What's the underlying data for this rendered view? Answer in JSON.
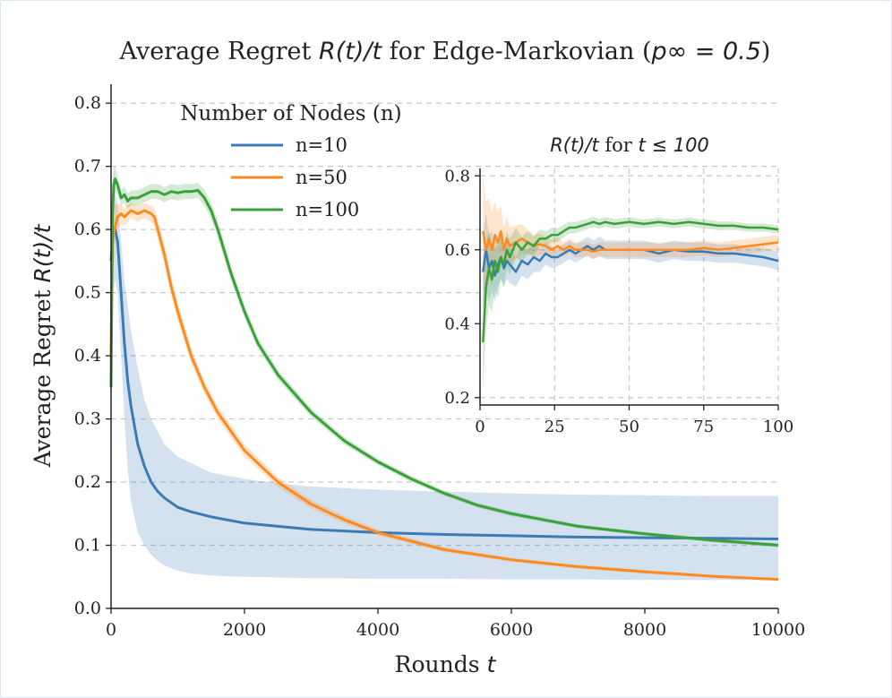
{
  "chart_data": {
    "type": "line",
    "title": {
      "prefix": "Average Regret ",
      "math": "R(t)/t",
      "mid": " for Edge-Markovian (",
      "math2": "p∞ = 0.5",
      "suffix": ")"
    },
    "xlabel": {
      "text": "Rounds ",
      "math": "t"
    },
    "ylabel": {
      "text": "Average Regret ",
      "math": "R(t)/t"
    },
    "xlim": [
      0,
      10000
    ],
    "ylim": [
      0,
      0.83
    ],
    "xticks": [
      "0",
      "2000",
      "4000",
      "6000",
      "8000",
      "10000"
    ],
    "yticks": [
      "0.0",
      "0.1",
      "0.2",
      "0.3",
      "0.4",
      "0.5",
      "0.6",
      "0.7",
      "0.8"
    ],
    "legend": {
      "title": "Number of Nodes (n)",
      "position": "top-left"
    },
    "series": [
      {
        "name": "n=10",
        "color": "#3a7bb5",
        "x": [
          0,
          30,
          60,
          100,
          150,
          200,
          250,
          300,
          400,
          500,
          600,
          700,
          800,
          1000,
          1200,
          1500,
          2000,
          2500,
          3000,
          4000,
          5000,
          6000,
          7000,
          8000,
          9000,
          10000
        ],
        "y": [
          0.55,
          0.59,
          0.6,
          0.58,
          0.5,
          0.42,
          0.36,
          0.32,
          0.26,
          0.225,
          0.2,
          0.185,
          0.175,
          0.16,
          0.153,
          0.145,
          0.135,
          0.13,
          0.125,
          0.12,
          0.117,
          0.115,
          0.113,
          0.112,
          0.111,
          0.11
        ],
        "lower": [
          0.45,
          0.5,
          0.52,
          0.5,
          0.4,
          0.3,
          0.22,
          0.17,
          0.12,
          0.1,
          0.085,
          0.075,
          0.068,
          0.06,
          0.055,
          0.052,
          0.05,
          0.049,
          0.048,
          0.047,
          0.047,
          0.046,
          0.046,
          0.045,
          0.045,
          0.045
        ],
        "upper": [
          0.65,
          0.66,
          0.66,
          0.64,
          0.58,
          0.52,
          0.48,
          0.44,
          0.38,
          0.33,
          0.3,
          0.28,
          0.26,
          0.24,
          0.23,
          0.215,
          0.205,
          0.198,
          0.193,
          0.188,
          0.185,
          0.182,
          0.18,
          0.179,
          0.178,
          0.178
        ]
      },
      {
        "name": "n=50",
        "color": "#ff8a1f",
        "x": [
          0,
          20,
          50,
          100,
          150,
          200,
          300,
          400,
          500,
          600,
          650,
          700,
          800,
          900,
          1000,
          1200,
          1400,
          1600,
          1800,
          2000,
          2500,
          3000,
          3500,
          4000,
          5000,
          6000,
          7000,
          8000,
          9000,
          10000
        ],
        "y": [
          0.4,
          0.58,
          0.6,
          0.62,
          0.625,
          0.62,
          0.63,
          0.625,
          0.63,
          0.625,
          0.62,
          0.6,
          0.56,
          0.51,
          0.47,
          0.4,
          0.35,
          0.31,
          0.28,
          0.25,
          0.2,
          0.165,
          0.14,
          0.12,
          0.093,
          0.077,
          0.066,
          0.058,
          0.051,
          0.046
        ],
        "lower": [
          0.3,
          0.52,
          0.56,
          0.6,
          0.61,
          0.605,
          0.618,
          0.612,
          0.618,
          0.612,
          0.605,
          0.585,
          0.545,
          0.495,
          0.455,
          0.388,
          0.34,
          0.3,
          0.27,
          0.24,
          0.192,
          0.158,
          0.134,
          0.115,
          0.089,
          0.074,
          0.063,
          0.055,
          0.049,
          0.044
        ],
        "upper": [
          0.5,
          0.64,
          0.64,
          0.64,
          0.64,
          0.635,
          0.642,
          0.638,
          0.642,
          0.638,
          0.635,
          0.615,
          0.575,
          0.525,
          0.485,
          0.412,
          0.36,
          0.32,
          0.29,
          0.26,
          0.208,
          0.172,
          0.146,
          0.125,
          0.097,
          0.08,
          0.069,
          0.061,
          0.053,
          0.048
        ]
      },
      {
        "name": "n=100",
        "color": "#3aa13a",
        "x": [
          0,
          20,
          40,
          60,
          100,
          150,
          200,
          250,
          300,
          400,
          500,
          600,
          700,
          800,
          900,
          1000,
          1100,
          1200,
          1300,
          1400,
          1500,
          1600,
          1800,
          2000,
          2200,
          2500,
          3000,
          3500,
          4000,
          4500,
          5000,
          5500,
          6000,
          7000,
          8000,
          9000,
          10000
        ],
        "y": [
          0.35,
          0.62,
          0.67,
          0.68,
          0.67,
          0.65,
          0.655,
          0.645,
          0.65,
          0.65,
          0.655,
          0.66,
          0.66,
          0.655,
          0.66,
          0.658,
          0.66,
          0.66,
          0.662,
          0.65,
          0.63,
          0.6,
          0.53,
          0.47,
          0.42,
          0.37,
          0.31,
          0.265,
          0.232,
          0.205,
          0.182,
          0.163,
          0.15,
          0.13,
          0.118,
          0.108,
          0.1
        ],
        "lower": [
          0.25,
          0.56,
          0.64,
          0.66,
          0.655,
          0.638,
          0.642,
          0.633,
          0.638,
          0.638,
          0.643,
          0.648,
          0.648,
          0.643,
          0.648,
          0.646,
          0.648,
          0.648,
          0.65,
          0.637,
          0.617,
          0.587,
          0.518,
          0.46,
          0.411,
          0.362,
          0.303,
          0.259,
          0.227,
          0.2,
          0.178,
          0.159,
          0.146,
          0.127,
          0.115,
          0.105,
          0.097
        ],
        "upper": [
          0.45,
          0.68,
          0.7,
          0.7,
          0.685,
          0.662,
          0.668,
          0.657,
          0.662,
          0.662,
          0.667,
          0.672,
          0.672,
          0.667,
          0.672,
          0.67,
          0.672,
          0.672,
          0.674,
          0.663,
          0.643,
          0.613,
          0.542,
          0.48,
          0.429,
          0.378,
          0.317,
          0.271,
          0.237,
          0.21,
          0.186,
          0.167,
          0.154,
          0.133,
          0.121,
          0.111,
          0.103
        ]
      }
    ],
    "inset": {
      "title": {
        "math": "R(t)/t",
        "mid": " for ",
        "math2": "t ≤ 100"
      },
      "xlim": [
        0,
        100
      ],
      "ylim": [
        0.18,
        0.82
      ],
      "xticks": [
        "0",
        "25",
        "50",
        "75",
        "100"
      ],
      "yticks": [
        "0.2",
        "0.4",
        "0.6",
        "0.8"
      ],
      "series": [
        {
          "name": "n=10",
          "color": "#3a7bb5",
          "x": [
            1,
            2,
            3,
            4,
            5,
            6,
            7,
            8,
            9,
            10,
            12,
            14,
            16,
            18,
            20,
            22,
            24,
            26,
            28,
            30,
            32,
            34,
            36,
            38,
            40,
            42,
            45,
            50,
            55,
            60,
            65,
            70,
            75,
            80,
            85,
            90,
            95,
            100
          ],
          "y": [
            0.54,
            0.6,
            0.55,
            0.57,
            0.53,
            0.56,
            0.58,
            0.55,
            0.57,
            0.56,
            0.54,
            0.57,
            0.56,
            0.58,
            0.57,
            0.59,
            0.58,
            0.58,
            0.59,
            0.6,
            0.59,
            0.6,
            0.61,
            0.6,
            0.61,
            0.6,
            0.6,
            0.6,
            0.6,
            0.59,
            0.6,
            0.595,
            0.595,
            0.59,
            0.59,
            0.585,
            0.58,
            0.57
          ],
          "lower": [
            0.44,
            0.5,
            0.46,
            0.49,
            0.46,
            0.5,
            0.52,
            0.5,
            0.52,
            0.51,
            0.5,
            0.53,
            0.52,
            0.54,
            0.54,
            0.56,
            0.55,
            0.555,
            0.565,
            0.575,
            0.565,
            0.575,
            0.585,
            0.575,
            0.585,
            0.575,
            0.575,
            0.575,
            0.575,
            0.565,
            0.575,
            0.57,
            0.57,
            0.565,
            0.565,
            0.56,
            0.555,
            0.545
          ],
          "upper": [
            0.64,
            0.7,
            0.64,
            0.65,
            0.6,
            0.62,
            0.64,
            0.6,
            0.62,
            0.61,
            0.58,
            0.61,
            0.6,
            0.62,
            0.6,
            0.62,
            0.61,
            0.605,
            0.615,
            0.625,
            0.615,
            0.625,
            0.635,
            0.625,
            0.635,
            0.625,
            0.625,
            0.625,
            0.625,
            0.615,
            0.625,
            0.62,
            0.62,
            0.615,
            0.615,
            0.61,
            0.605,
            0.595
          ]
        },
        {
          "name": "n=50",
          "color": "#ff8a1f",
          "x": [
            1,
            2,
            3,
            4,
            5,
            6,
            7,
            8,
            9,
            10,
            12,
            14,
            16,
            18,
            20,
            22,
            24,
            26,
            28,
            30,
            32,
            34,
            36,
            38,
            40,
            42,
            45,
            50,
            55,
            60,
            65,
            70,
            75,
            80,
            85,
            90,
            95,
            100
          ],
          "y": [
            0.65,
            0.6,
            0.63,
            0.6,
            0.64,
            0.62,
            0.65,
            0.6,
            0.63,
            0.61,
            0.62,
            0.63,
            0.62,
            0.61,
            0.615,
            0.61,
            0.6,
            0.61,
            0.6,
            0.61,
            0.6,
            0.6,
            0.6,
            0.595,
            0.6,
            0.6,
            0.6,
            0.6,
            0.6,
            0.6,
            0.6,
            0.6,
            0.605,
            0.6,
            0.605,
            0.61,
            0.615,
            0.62
          ],
          "lower": [
            0.5,
            0.47,
            0.52,
            0.5,
            0.55,
            0.54,
            0.58,
            0.54,
            0.57,
            0.56,
            0.575,
            0.59,
            0.585,
            0.58,
            0.585,
            0.585,
            0.575,
            0.585,
            0.58,
            0.59,
            0.58,
            0.58,
            0.58,
            0.575,
            0.58,
            0.58,
            0.58,
            0.58,
            0.58,
            0.58,
            0.58,
            0.58,
            0.585,
            0.58,
            0.585,
            0.59,
            0.595,
            0.6
          ],
          "upper": [
            0.8,
            0.73,
            0.74,
            0.7,
            0.73,
            0.7,
            0.72,
            0.66,
            0.69,
            0.66,
            0.665,
            0.67,
            0.655,
            0.64,
            0.645,
            0.635,
            0.625,
            0.635,
            0.62,
            0.63,
            0.62,
            0.62,
            0.62,
            0.615,
            0.62,
            0.62,
            0.62,
            0.62,
            0.62,
            0.62,
            0.62,
            0.62,
            0.625,
            0.62,
            0.625,
            0.63,
            0.635,
            0.64
          ]
        },
        {
          "name": "n=100",
          "color": "#3aa13a",
          "x": [
            1,
            2,
            3,
            4,
            5,
            6,
            7,
            8,
            9,
            10,
            12,
            14,
            16,
            18,
            20,
            22,
            24,
            26,
            28,
            30,
            32,
            34,
            36,
            38,
            40,
            42,
            45,
            50,
            55,
            60,
            65,
            70,
            75,
            80,
            85,
            90,
            95,
            100
          ],
          "y": [
            0.35,
            0.5,
            0.55,
            0.52,
            0.57,
            0.54,
            0.58,
            0.56,
            0.6,
            0.58,
            0.62,
            0.6,
            0.62,
            0.61,
            0.63,
            0.63,
            0.64,
            0.64,
            0.65,
            0.66,
            0.66,
            0.665,
            0.67,
            0.675,
            0.67,
            0.675,
            0.67,
            0.675,
            0.67,
            0.675,
            0.67,
            0.675,
            0.67,
            0.665,
            0.665,
            0.66,
            0.66,
            0.655
          ],
          "lower": [
            0.22,
            0.38,
            0.45,
            0.43,
            0.49,
            0.47,
            0.52,
            0.5,
            0.55,
            0.53,
            0.58,
            0.565,
            0.59,
            0.585,
            0.605,
            0.61,
            0.62,
            0.622,
            0.633,
            0.644,
            0.645,
            0.65,
            0.656,
            0.661,
            0.657,
            0.662,
            0.657,
            0.662,
            0.658,
            0.663,
            0.658,
            0.663,
            0.658,
            0.653,
            0.654,
            0.649,
            0.649,
            0.644
          ],
          "upper": [
            0.48,
            0.62,
            0.65,
            0.61,
            0.65,
            0.61,
            0.64,
            0.62,
            0.65,
            0.63,
            0.66,
            0.635,
            0.65,
            0.635,
            0.655,
            0.65,
            0.66,
            0.658,
            0.667,
            0.676,
            0.675,
            0.68,
            0.684,
            0.689,
            0.683,
            0.688,
            0.683,
            0.688,
            0.682,
            0.687,
            0.682,
            0.687,
            0.682,
            0.677,
            0.676,
            0.671,
            0.671,
            0.666
          ]
        }
      ]
    }
  }
}
